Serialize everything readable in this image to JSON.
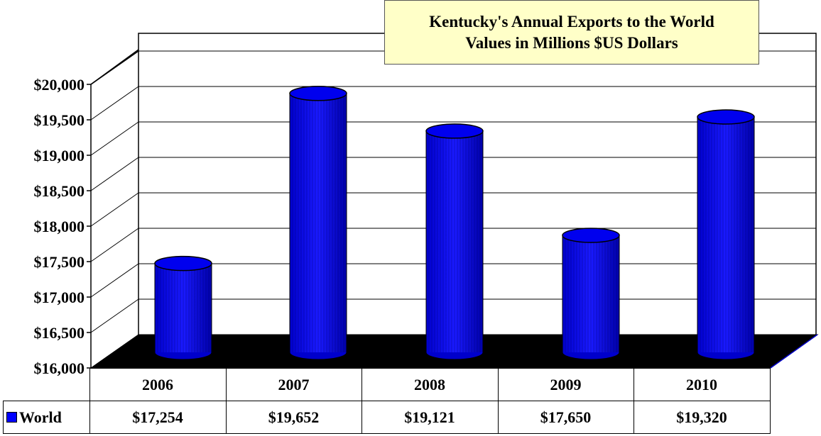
{
  "chart_data": {
    "type": "bar",
    "style": "3d-cylinder",
    "title": "Kentucky's Annual Exports to the World",
    "subtitle": "Values in Millions $US Dollars",
    "categories": [
      "2006",
      "2007",
      "2008",
      "2009",
      "2010"
    ],
    "series": [
      {
        "name": "World",
        "values": [
          17254,
          19652,
          19121,
          17650,
          19320
        ],
        "color": "#0000ff"
      }
    ],
    "data_labels": [
      "$17,254",
      "$19,652",
      "$19,121",
      "$17,650",
      "$19,320"
    ],
    "y_ticks": [
      "$16,000",
      "$16,500",
      "$17,000",
      "$17,500",
      "$18,000",
      "$18,500",
      "$19,000",
      "$19,500",
      "$20,000"
    ],
    "ylim": [
      16000,
      20000
    ],
    "grid": true,
    "legend": "data-table"
  }
}
